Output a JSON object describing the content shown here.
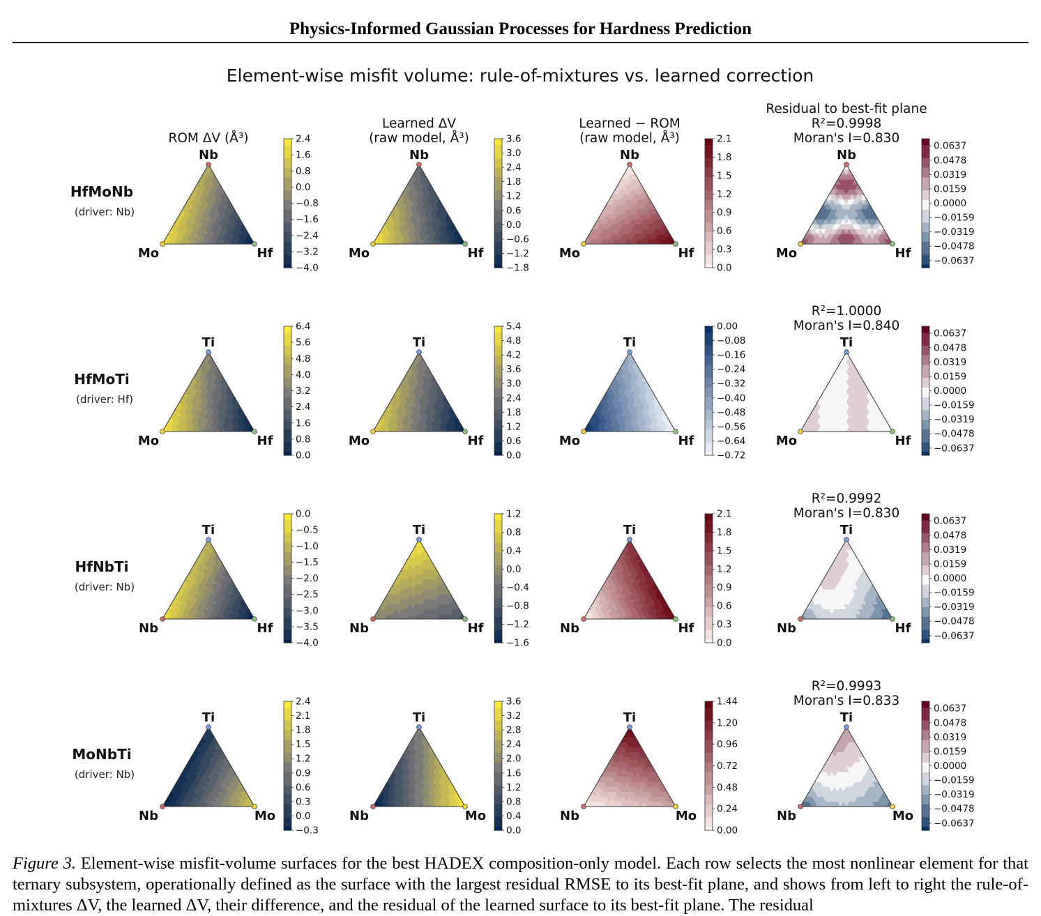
{
  "header": {
    "title": "Physics-Informed Gaussian Processes for Hardness Prediction"
  },
  "figure": {
    "suptitle": "Element-wise misfit volume: rule-of-mixtures vs. learned correction"
  },
  "caption": {
    "label": "Figure 3.",
    "text": "Element-wise misfit-volume surfaces for the best HADEX composition-only model. Each row selects the most nonlinear element for that ternary subsystem, operationally defined as the surface with the largest residual RMSE to its best-fit plane, and shows from left to right the rule-of-mixtures ΔV, the learned ΔV, their difference, and the residual of the learned surface to its best-fit plane. The residual"
  },
  "colors": {
    "cividis_low": "#00224e",
    "cividis_mid": "#7c7b78",
    "cividis_high": "#fee838",
    "blues_low": "#f7fbff",
    "blues_high": "#08306b",
    "reds_low": "#fff5f0",
    "reds_high": "#67000d",
    "rdbu_low": "#053061",
    "rdbu_mid": "#f7f7f7",
    "rdbu_high": "#67001f",
    "vertex_red": "#d16b6b",
    "vertex_blue": "#7a9de0",
    "vertex_green": "#8bc47f",
    "vertex_yellow": "#f2d13a"
  },
  "chart_data": [
    {
      "type": "heatmap",
      "row": "HfMoNb",
      "driver": "(driver: Nb)",
      "panel": 1,
      "title": "ROM ΔV (Å³)",
      "vertices": {
        "top": "Nb",
        "left": "Mo",
        "right": "Hf"
      },
      "colormap": "cividis",
      "range": [
        -4.0,
        2.4
      ],
      "ticks": [
        "2.4",
        "1.6",
        "0.8",
        "0.0",
        "−0.8",
        "−1.6",
        "−2.4",
        "−3.2",
        "−4.0"
      ],
      "values": [
        -4.0,
        -3.2,
        -2.4,
        -1.6,
        -0.8,
        0.0,
        0.8,
        1.6,
        2.4
      ]
    },
    {
      "type": "heatmap",
      "row": "HfMoNb",
      "panel": 2,
      "title": "Learned ΔV\n(raw model, Å³)",
      "vertices": {
        "top": "Nb",
        "left": "Mo",
        "right": "Hf"
      },
      "colormap": "cividis",
      "range": [
        -1.8,
        3.6
      ],
      "ticks": [
        "3.6",
        "3.0",
        "2.4",
        "1.8",
        "1.2",
        "0.6",
        "0.0",
        "−0.6",
        "−1.2",
        "−1.8"
      ],
      "values": [
        -1.8,
        -1.2,
        -0.6,
        0.0,
        0.6,
        1.2,
        1.8,
        2.4,
        3.0,
        3.6
      ]
    },
    {
      "type": "heatmap",
      "row": "HfMoNb",
      "panel": 3,
      "title": "Learned − ROM\n(raw model, Å³)",
      "vertices": {
        "top": "Nb",
        "left": "Mo",
        "right": "Hf"
      },
      "colormap": "reds",
      "range": [
        0.0,
        2.1
      ],
      "ticks": [
        "2.1",
        "1.8",
        "1.5",
        "1.2",
        "0.9",
        "0.6",
        "0.3",
        "0.0"
      ],
      "values": [
        0.0,
        0.3,
        0.6,
        0.9,
        1.2,
        1.5,
        1.8,
        2.1
      ]
    },
    {
      "type": "heatmap",
      "row": "HfMoNb",
      "panel": 4,
      "title": "Residual to best-fit plane\nR²=0.9998\nMoran's I=0.830",
      "vertices": {
        "top": "Nb",
        "left": "Mo",
        "right": "Hf"
      },
      "colormap": "rdbu",
      "range": [
        -0.0637,
        0.0637
      ],
      "r2": "0.9998",
      "morans_i": "0.830",
      "ticks": [
        "0.0637",
        "0.0478",
        "0.0319",
        "0.0159",
        "0.0000",
        "−0.0159",
        "−0.0319",
        "−0.0478",
        "−0.0637"
      ]
    },
    {
      "type": "heatmap",
      "row": "HfMoTi",
      "driver": "(driver: Hf)",
      "panel": 1,
      "title": "",
      "vertices": {
        "top": "Ti",
        "left": "Mo",
        "right": "Hf"
      },
      "colormap": "cividis",
      "range": [
        0.0,
        6.4
      ],
      "ticks": [
        "6.4",
        "5.6",
        "4.8",
        "4.0",
        "3.2",
        "2.4",
        "1.6",
        "0.8",
        "0.0"
      ],
      "values": [
        0.0,
        0.8,
        1.6,
        2.4,
        3.2,
        4.0,
        4.8,
        5.6,
        6.4
      ]
    },
    {
      "type": "heatmap",
      "row": "HfMoTi",
      "panel": 2,
      "title": "",
      "vertices": {
        "top": "Ti",
        "left": "Mo",
        "right": "Hf"
      },
      "colormap": "cividis",
      "range": [
        0.0,
        5.4
      ],
      "ticks": [
        "5.4",
        "4.8",
        "4.2",
        "3.6",
        "3.0",
        "2.4",
        "1.8",
        "1.2",
        "0.6",
        "0.0"
      ],
      "values": [
        0.0,
        0.6,
        1.2,
        1.8,
        2.4,
        3.0,
        3.6,
        4.2,
        4.8,
        5.4
      ]
    },
    {
      "type": "heatmap",
      "row": "HfMoTi",
      "panel": 3,
      "title": "",
      "vertices": {
        "top": "Ti",
        "left": "Mo",
        "right": "Hf"
      },
      "colormap": "blues",
      "range": [
        -0.72,
        0.0
      ],
      "ticks": [
        "0.00",
        "−0.08",
        "−0.16",
        "−0.24",
        "−0.32",
        "−0.40",
        "−0.48",
        "−0.56",
        "−0.64",
        "−0.72"
      ],
      "values": [
        -0.72,
        -0.64,
        -0.56,
        -0.48,
        -0.4,
        -0.32,
        -0.24,
        -0.16,
        -0.08,
        0.0
      ]
    },
    {
      "type": "heatmap",
      "row": "HfMoTi",
      "panel": 4,
      "title": "R²=1.0000\nMoran's I=0.840",
      "vertices": {
        "top": "Ti",
        "left": "Mo",
        "right": "Hf"
      },
      "colormap": "rdbu",
      "range": [
        -0.0637,
        0.0637
      ],
      "r2": "1.0000",
      "morans_i": "0.840",
      "ticks": [
        "0.0637",
        "0.0478",
        "0.0319",
        "0.0159",
        "0.0000",
        "−0.0159",
        "−0.0319",
        "−0.0478",
        "−0.0637"
      ]
    },
    {
      "type": "heatmap",
      "row": "HfNbTi",
      "driver": "(driver: Nb)",
      "panel": 1,
      "title": "",
      "vertices": {
        "top": "Ti",
        "left": "Nb",
        "right": "Hf"
      },
      "colormap": "cividis",
      "range": [
        -4.0,
        0.0
      ],
      "ticks": [
        "0.0",
        "−0.5",
        "−1.0",
        "−1.5",
        "−2.0",
        "−2.5",
        "−3.0",
        "−3.5",
        "−4.0"
      ],
      "values": [
        -4.0,
        -3.5,
        -3.0,
        -2.5,
        -2.0,
        -1.5,
        -1.0,
        -0.5,
        0.0
      ]
    },
    {
      "type": "heatmap",
      "row": "HfNbTi",
      "panel": 2,
      "title": "",
      "vertices": {
        "top": "Ti",
        "left": "Nb",
        "right": "Hf"
      },
      "colormap": "cividis",
      "range": [
        -1.8,
        1.4
      ],
      "ticks": [
        "1.2",
        "0.8",
        "0.4",
        "0.0",
        "−0.4",
        "−0.8",
        "−1.2",
        "−1.6"
      ],
      "values": [
        -1.6,
        -1.2,
        -0.8,
        -0.4,
        0.0,
        0.4,
        0.8,
        1.2
      ]
    },
    {
      "type": "heatmap",
      "row": "HfNbTi",
      "panel": 3,
      "title": "",
      "vertices": {
        "top": "Ti",
        "left": "Nb",
        "right": "Hf"
      },
      "colormap": "reds",
      "range": [
        0.0,
        2.1
      ],
      "ticks": [
        "2.1",
        "1.8",
        "1.5",
        "1.2",
        "0.9",
        "0.6",
        "0.3",
        "0.0"
      ],
      "values": [
        0.0,
        0.3,
        0.6,
        0.9,
        1.2,
        1.5,
        1.8,
        2.1
      ]
    },
    {
      "type": "heatmap",
      "row": "HfNbTi",
      "panel": 4,
      "title": "R²=0.9992\nMoran's I=0.830",
      "vertices": {
        "top": "Ti",
        "left": "Nb",
        "right": "Hf"
      },
      "colormap": "rdbu",
      "range": [
        -0.0637,
        0.0637
      ],
      "r2": "0.9992",
      "morans_i": "0.830",
      "ticks": [
        "0.0637",
        "0.0478",
        "0.0319",
        "0.0159",
        "0.0000",
        "−0.0159",
        "−0.0319",
        "−0.0478",
        "−0.0637"
      ]
    },
    {
      "type": "heatmap",
      "row": "MoNbTi",
      "driver": "(driver: Nb)",
      "panel": 1,
      "title": "",
      "vertices": {
        "top": "Ti",
        "left": "Nb",
        "right": "Mo"
      },
      "colormap": "cividis",
      "range": [
        -0.5,
        2.4
      ],
      "ticks": [
        "2.4",
        "2.1",
        "1.8",
        "1.5",
        "1.2",
        "0.9",
        "0.6",
        "0.3",
        "0.0",
        "−0.3"
      ],
      "values": [
        -0.3,
        0.0,
        0.3,
        0.6,
        0.9,
        1.2,
        1.5,
        1.8,
        2.1,
        2.4
      ]
    },
    {
      "type": "heatmap",
      "row": "MoNbTi",
      "panel": 2,
      "title": "",
      "vertices": {
        "top": "Ti",
        "left": "Nb",
        "right": "Mo"
      },
      "colormap": "cividis",
      "range": [
        0.0,
        3.6
      ],
      "ticks": [
        "3.6",
        "3.2",
        "2.8",
        "2.4",
        "2.0",
        "1.6",
        "1.2",
        "0.8",
        "0.4",
        "0.0"
      ],
      "values": [
        0.0,
        0.4,
        0.8,
        1.2,
        1.6,
        2.0,
        2.4,
        2.8,
        3.2,
        3.6
      ]
    },
    {
      "type": "heatmap",
      "row": "MoNbTi",
      "panel": 3,
      "title": "",
      "vertices": {
        "top": "Ti",
        "left": "Nb",
        "right": "Mo"
      },
      "colormap": "reds",
      "range": [
        0.0,
        1.6
      ],
      "ticks": [
        "1.44",
        "1.20",
        "0.96",
        "0.72",
        "0.48",
        "0.24",
        "0.00"
      ],
      "values": [
        0.0,
        0.24,
        0.48,
        0.72,
        0.96,
        1.2,
        1.44
      ]
    },
    {
      "type": "heatmap",
      "row": "MoNbTi",
      "panel": 4,
      "title": "R²=0.9993\nMoran's I=0.833",
      "vertices": {
        "top": "Ti",
        "left": "Nb",
        "right": "Mo"
      },
      "colormap": "rdbu",
      "range": [
        -0.0637,
        0.0637
      ],
      "r2": "0.9993",
      "morans_i": "0.833",
      "ticks": [
        "0.0637",
        "0.0478",
        "0.0319",
        "0.0159",
        "0.0000",
        "−0.0159",
        "−0.0319",
        "−0.0478",
        "−0.0637"
      ]
    }
  ]
}
